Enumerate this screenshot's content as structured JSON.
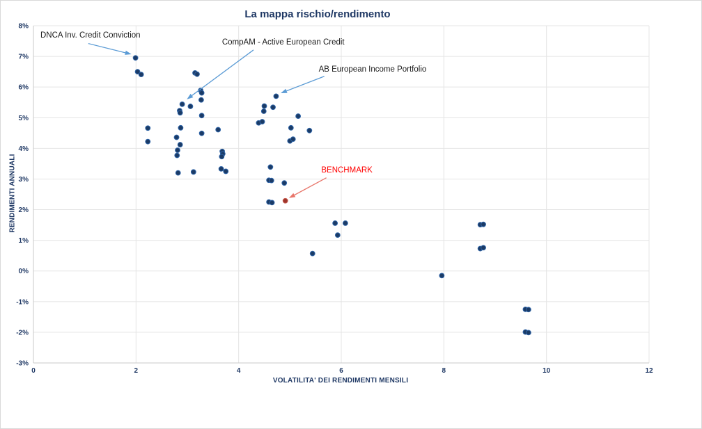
{
  "chart_data": {
    "type": "scatter",
    "title": "La mappa rischio/rendimento",
    "xlabel": "VOLATILITA' DEI RENDIMENTI MENSILI",
    "ylabel": "RENDIMENTI ANNUALI",
    "xlim": [
      0,
      12
    ],
    "ylim": [
      -3,
      8
    ],
    "grid": true,
    "legend_position": "none",
    "x_ticks": [
      0,
      2,
      4,
      6,
      8,
      10,
      12
    ],
    "x_tick_labels": [
      "0",
      "2",
      "4",
      "6",
      "8",
      "10",
      "12"
    ],
    "y_ticks": [
      8,
      7,
      6,
      5,
      4,
      3,
      2,
      1,
      0,
      -1,
      -2,
      -3
    ],
    "y_tick_labels": [
      "8%",
      "7%",
      "6%",
      "5%",
      "4%",
      "3%",
      "2%",
      "1%",
      "0%",
      "-1%",
      "-2%",
      "-3%"
    ],
    "series": [
      {
        "name": "Fondi",
        "marker_color": "#1B3B66",
        "marker_edge": "#2F64A7",
        "points": [
          [
            1.99,
            6.95
          ],
          [
            2.03,
            6.5
          ],
          [
            2.1,
            6.41
          ],
          [
            3.15,
            6.46
          ],
          [
            3.19,
            6.42
          ],
          [
            3.26,
            5.89
          ],
          [
            3.28,
            5.81
          ],
          [
            3.27,
            5.58
          ],
          [
            2.9,
            5.44
          ],
          [
            3.06,
            5.37
          ],
          [
            2.85,
            5.23
          ],
          [
            2.86,
            5.16
          ],
          [
            3.28,
            5.07
          ],
          [
            2.23,
            4.66
          ],
          [
            2.23,
            4.22
          ],
          [
            2.87,
            4.67
          ],
          [
            2.79,
            4.36
          ],
          [
            2.86,
            4.12
          ],
          [
            2.81,
            3.94
          ],
          [
            2.8,
            3.77
          ],
          [
            3.28,
            4.49
          ],
          [
            3.6,
            4.61
          ],
          [
            3.68,
            3.9
          ],
          [
            3.69,
            3.82
          ],
          [
            3.67,
            3.73
          ],
          [
            3.66,
            3.33
          ],
          [
            3.75,
            3.25
          ],
          [
            2.82,
            3.2
          ],
          [
            3.12,
            3.23
          ],
          [
            4.73,
            5.7
          ],
          [
            4.5,
            5.38
          ],
          [
            4.49,
            5.21
          ],
          [
            4.67,
            5.34
          ],
          [
            5.16,
            5.05
          ],
          [
            4.39,
            4.83
          ],
          [
            4.46,
            4.87
          ],
          [
            5.02,
            4.67
          ],
          [
            5.38,
            4.58
          ],
          [
            5.0,
            4.24
          ],
          [
            5.06,
            4.3
          ],
          [
            4.62,
            3.39
          ],
          [
            4.59,
            2.96
          ],
          [
            4.64,
            2.95
          ],
          [
            4.89,
            2.87
          ],
          [
            4.59,
            2.25
          ],
          [
            4.65,
            2.23
          ],
          [
            5.88,
            1.56
          ],
          [
            6.08,
            1.56
          ],
          [
            5.93,
            1.17
          ],
          [
            5.44,
            0.57
          ],
          [
            7.96,
            -0.15
          ],
          [
            8.71,
            1.51
          ],
          [
            8.77,
            1.52
          ],
          [
            8.71,
            0.73
          ],
          [
            8.77,
            0.76
          ],
          [
            9.59,
            -1.25
          ],
          [
            9.65,
            -1.26
          ],
          [
            9.59,
            -1.99
          ],
          [
            9.65,
            -2.01
          ]
        ]
      },
      {
        "name": "BENCHMARK",
        "marker_color": "#9E352B",
        "marker_edge": "#C4584C",
        "points": [
          [
            4.91,
            2.29
          ]
        ]
      }
    ],
    "annotations": [
      {
        "label": "DNCA Inv. Credit Conviction",
        "text_color": "#1a1a1a",
        "arrow_color": "#5B9BD5",
        "label_x": 1.11,
        "label_y": 7.71,
        "arrow": {
          "x1": 1.07,
          "y1": 7.42,
          "x2": 1.91,
          "y2": 7.07
        },
        "target_point": [
          1.99,
          6.95
        ]
      },
      {
        "label": "CompAM - Active European Credit",
        "text_color": "#1a1a1a",
        "arrow_color": "#5B9BD5",
        "label_x": 4.87,
        "label_y": 7.48,
        "arrow": {
          "x1": 4.29,
          "y1": 7.21,
          "x2": 2.99,
          "y2": 5.6
        },
        "target_point": [
          2.9,
          5.44
        ]
      },
      {
        "label": "AB European Income Portfolio",
        "text_color": "#1a1a1a",
        "arrow_color": "#5B9BD5",
        "label_x": 6.61,
        "label_y": 6.59,
        "arrow": {
          "x1": 5.67,
          "y1": 6.35,
          "x2": 4.82,
          "y2": 5.8
        },
        "target_point": [
          4.73,
          5.7
        ]
      },
      {
        "label": "BENCHMARK",
        "text_color": "#FF0000",
        "arrow_color": "#E8756A",
        "label_x": 6.11,
        "label_y": 3.31,
        "arrow": {
          "x1": 5.71,
          "y1": 3.04,
          "x2": 4.98,
          "y2": 2.38
        },
        "target_point": [
          4.91,
          2.29
        ]
      }
    ],
    "colors": {
      "title": "#1F3864",
      "axis_text": "#1F3864",
      "gridline": "#E4E4E4",
      "axis_line": "#C9C9C9",
      "background": "#FFFFFF"
    }
  }
}
